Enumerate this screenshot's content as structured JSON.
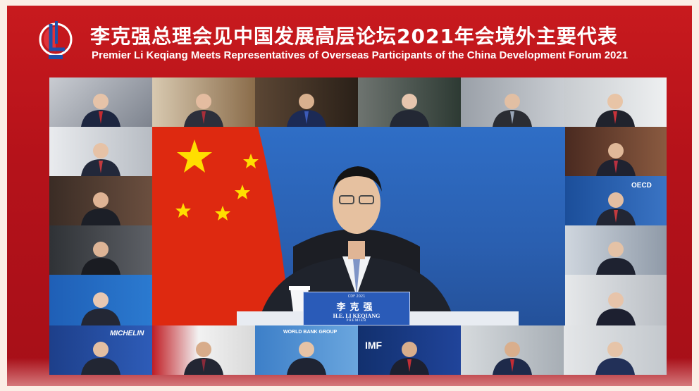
{
  "header": {
    "title_cn": "李克强总理会见中国发展高层论坛2021年会境外主要代表",
    "title_en": "Premier Li Keqiang Meets Representatives of Overseas Participants of the China Development Forum 2021",
    "logo_name": "cdf-logo"
  },
  "main_speaker": {
    "nameplate_top": "CDF 2021",
    "name_cn": "李克强",
    "name_en": "H.E. LI KEQIANG",
    "role": "PREMIER"
  },
  "tile_labels": {
    "michelin": "MICHELIN",
    "imf": "IMF",
    "oecd": "OECD",
    "world_bank": "WORLD BANK GROUP"
  },
  "colors": {
    "brand_red": "#b5121a",
    "nameplate_blue": "#2a5bb8",
    "flag_red": "#de2910",
    "flag_star": "#ffde00"
  }
}
